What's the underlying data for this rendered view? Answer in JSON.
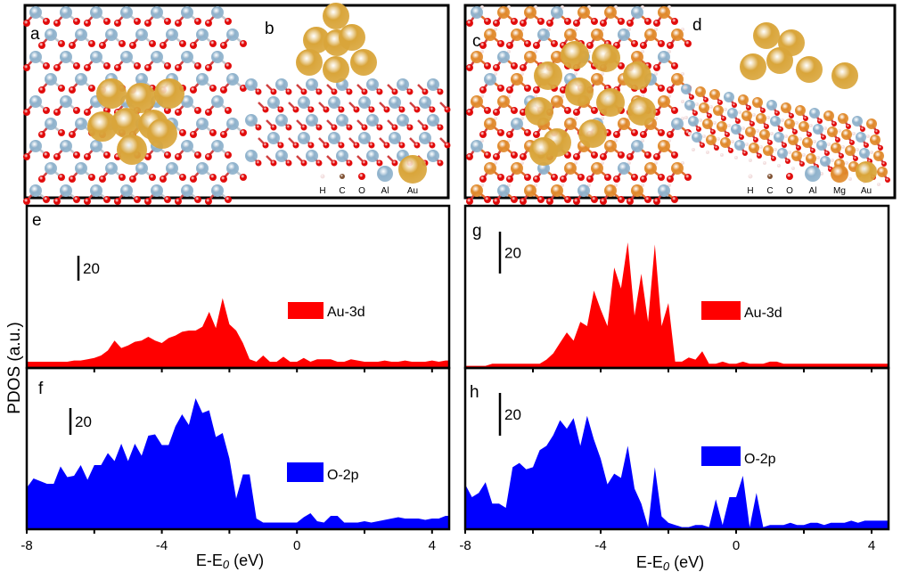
{
  "panels": {
    "a": "a",
    "b": "b",
    "c": "c",
    "d": "d",
    "e": "e",
    "f": "f",
    "g": "g",
    "h": "h"
  },
  "legend_b": [
    "H",
    "C",
    "O",
    "Al",
    "Au"
  ],
  "legend_d": [
    "H",
    "C",
    "O",
    "Al",
    "Mg",
    "Au"
  ],
  "colors": {
    "H": "#f2dede",
    "C": "#7a4a2a",
    "O": "#e00000",
    "Al": "#8fb2cc",
    "Mg": "#e08a2c",
    "Au": "#d9a53a",
    "au3d": "#ff0000",
    "o2p": "#0000ff"
  },
  "chart_data": [
    {
      "type": "area",
      "panel": "e",
      "series_name": "Au-3d",
      "color": "#ff0000",
      "x_start": -8,
      "x_step": 0.2,
      "xlim": [
        -8,
        4.5
      ],
      "scale_bar": "20",
      "values": [
        5,
        5,
        5,
        5,
        5,
        5,
        5,
        6,
        6,
        7,
        8,
        10,
        14,
        22,
        16,
        18,
        21,
        22,
        25,
        22,
        20,
        24,
        26,
        29,
        30,
        30,
        33,
        45,
        32,
        56,
        35,
        30,
        20,
        7,
        5,
        10,
        5,
        5,
        9,
        5,
        5,
        8,
        5,
        7,
        7,
        7,
        5,
        5,
        7,
        6,
        5,
        5,
        5,
        6,
        5,
        5,
        6,
        5,
        5,
        5,
        6,
        5,
        6
      ]
    },
    {
      "type": "area",
      "panel": "f",
      "series_name": "O-2p",
      "color": "#0000ff",
      "x_start": -8,
      "x_step": 0.2,
      "xlim": [
        -8,
        4.5
      ],
      "scale_bar": "20",
      "values": [
        31,
        38,
        36,
        34,
        34,
        47,
        39,
        40,
        48,
        37,
        48,
        48,
        57,
        51,
        64,
        51,
        64,
        55,
        70,
        71,
        63,
        63,
        77,
        86,
        78,
        98,
        87,
        89,
        69,
        72,
        53,
        23,
        41,
        41,
        8,
        5,
        5,
        5,
        5,
        5,
        5,
        9,
        12,
        6,
        5,
        10,
        10,
        5,
        5,
        5,
        6,
        5,
        6,
        7,
        8,
        9,
        8,
        8,
        8,
        7,
        8,
        8,
        10
      ]
    },
    {
      "type": "area",
      "panel": "g",
      "series_name": "Au-3d",
      "color": "#ff0000",
      "x_start": -8,
      "x_step": 0.2,
      "xlim": [
        -8,
        4.5
      ],
      "scale_bar": "20",
      "values": [
        1,
        1,
        1,
        1,
        2,
        2,
        2,
        2,
        2,
        2,
        2,
        2,
        4,
        7,
        12,
        17,
        13,
        22,
        20,
        37,
        28,
        20,
        48,
        38,
        60,
        25,
        45,
        22,
        59,
        20,
        31,
        3,
        3,
        5,
        4,
        8,
        2,
        2,
        3,
        2,
        2,
        3,
        2,
        2,
        2,
        3,
        3,
        2,
        2,
        2,
        2,
        2,
        2,
        2,
        2,
        2,
        2,
        2,
        2,
        2,
        2,
        2,
        2
      ]
    },
    {
      "type": "area",
      "panel": "h",
      "series_name": "O-2p",
      "color": "#0000ff",
      "x_start": -8,
      "x_step": 0.2,
      "xlim": [
        -8,
        4.5
      ],
      "scale_bar": "20",
      "values": [
        21,
        15,
        17,
        22,
        12,
        12,
        10,
        29,
        31,
        28,
        29,
        37,
        39,
        44,
        51,
        47,
        52,
        39,
        53,
        42,
        33,
        21,
        26,
        24,
        39,
        19,
        12,
        1,
        29,
        6,
        3,
        2,
        1,
        1,
        2,
        2,
        1,
        14,
        2,
        15,
        15,
        25,
        1,
        17,
        1,
        2,
        2,
        2,
        3,
        2,
        2,
        3,
        3,
        2,
        3,
        3,
        3,
        4,
        3,
        4,
        4,
        4,
        4
      ]
    }
  ],
  "axes": {
    "ylabel": "PDOS (a.u.)",
    "xlabel_main": "E-E",
    "xlabel_sub": "0",
    "xlabel_unit": " (eV)",
    "xticks": [
      -8,
      -4,
      0,
      4
    ],
    "xtick_labels": [
      "-8",
      "-4",
      "0",
      "4"
    ]
  }
}
